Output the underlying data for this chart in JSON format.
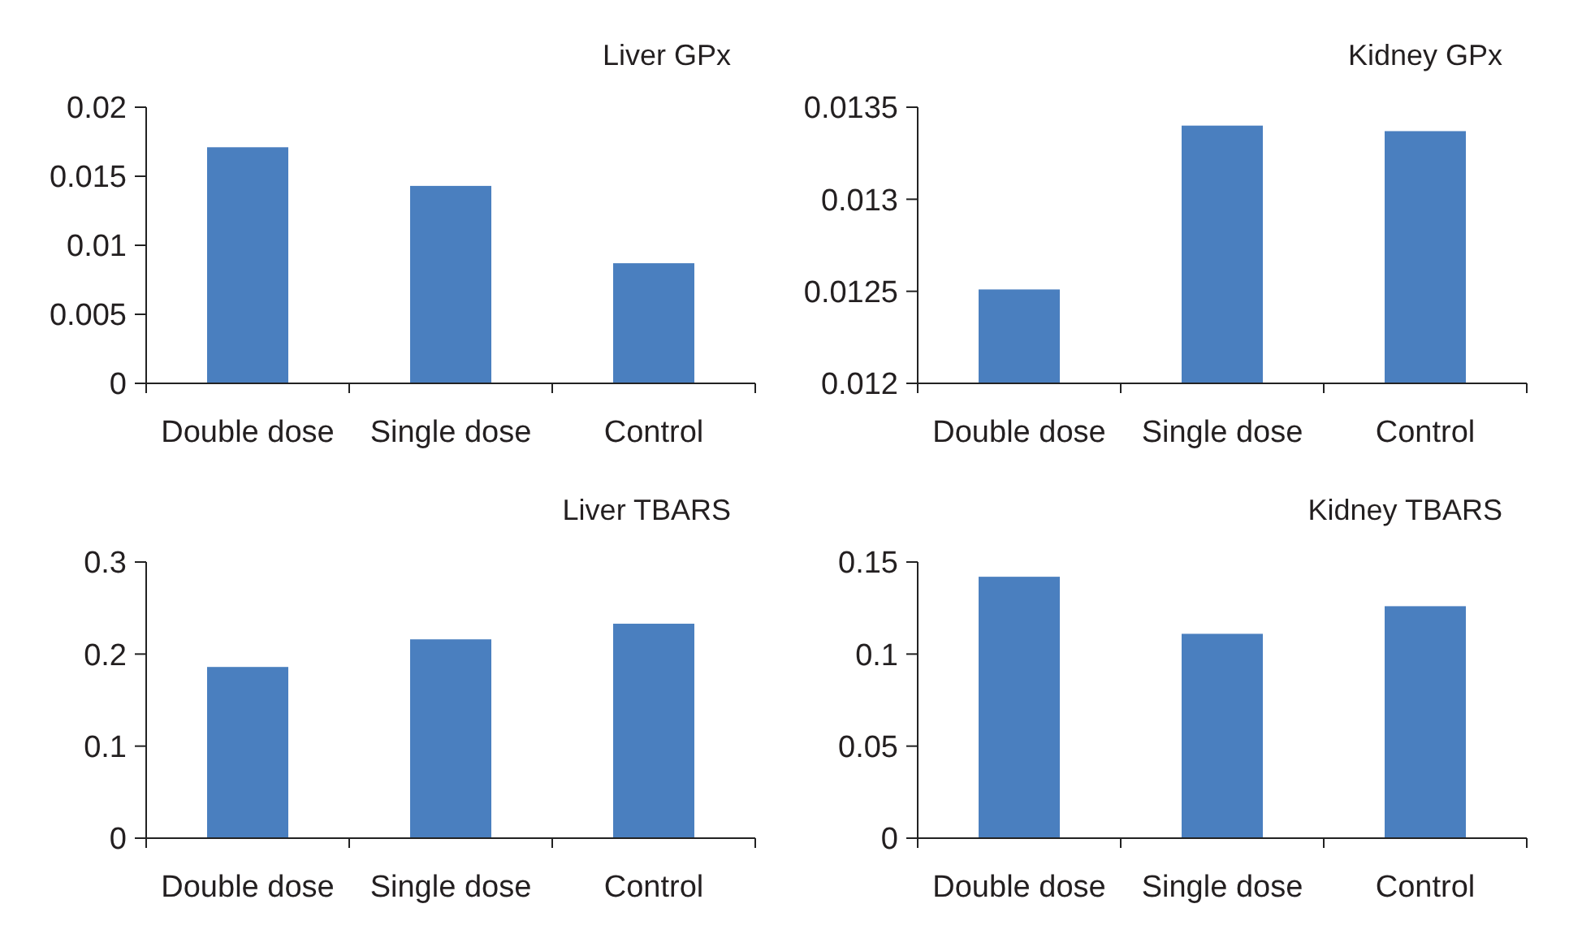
{
  "chart_data": [
    {
      "type": "bar",
      "title": "Liver GPx",
      "categories": [
        "Double dose",
        "Single dose",
        "Control"
      ],
      "values": [
        0.0171,
        0.0143,
        0.0087
      ],
      "color": "#4a7fbf",
      "ylim": [
        0,
        0.02
      ],
      "yticks": [
        0,
        0.005,
        0.01,
        0.015,
        0.02
      ]
    },
    {
      "type": "bar",
      "title": "Kidney GPx",
      "categories": [
        "Double dose",
        "Single dose",
        "Control"
      ],
      "values": [
        0.01251,
        0.0134,
        0.01337
      ],
      "color": "#4a7fbf",
      "ylim": [
        0.012,
        0.0135
      ],
      "yticks": [
        0.012,
        0.0125,
        0.013,
        0.0135
      ]
    },
    {
      "type": "bar",
      "title": "Liver TBARS",
      "categories": [
        "Double dose",
        "Single dose",
        "Control"
      ],
      "values": [
        0.186,
        0.216,
        0.233
      ],
      "color": "#4a7fbf",
      "ylim": [
        0,
        0.3
      ],
      "yticks": [
        0,
        0.1,
        0.2,
        0.3
      ]
    },
    {
      "type": "bar",
      "title": "Kidney TBARS",
      "categories": [
        "Double dose",
        "Single dose",
        "Control"
      ],
      "values": [
        0.142,
        0.111,
        0.126
      ],
      "color": "#4a7fbf",
      "ylim": [
        0,
        0.15
      ],
      "yticks": [
        0,
        0.05,
        0.1,
        0.15
      ]
    }
  ]
}
